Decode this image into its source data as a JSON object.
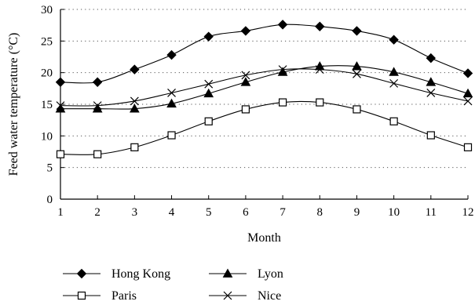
{
  "chart_data": {
    "type": "line",
    "x": [
      1,
      2,
      3,
      4,
      5,
      6,
      7,
      8,
      9,
      10,
      11,
      12
    ],
    "series": [
      {
        "name": "Hong Kong",
        "marker": "diamond-filled",
        "values": [
          18.5,
          18.5,
          20.5,
          22.8,
          25.7,
          26.6,
          27.6,
          27.3,
          26.6,
          25.2,
          22.3,
          19.9
        ]
      },
      {
        "name": "Lyon",
        "marker": "triangle-filled",
        "values": [
          14.3,
          14.3,
          14.3,
          15.1,
          16.7,
          18.5,
          20.1,
          21.0,
          21.0,
          20.1,
          18.5,
          16.7
        ]
      },
      {
        "name": "Paris",
        "marker": "square-open",
        "values": [
          7.1,
          7.1,
          8.2,
          10.1,
          12.3,
          14.2,
          15.3,
          15.3,
          14.2,
          12.3,
          10.1,
          8.2
        ]
      },
      {
        "name": "Nice",
        "marker": "x",
        "values": [
          14.8,
          14.8,
          15.5,
          16.8,
          18.2,
          19.6,
          20.5,
          20.5,
          19.8,
          18.3,
          16.8,
          15.5
        ]
      }
    ],
    "xlabel": "Month",
    "ylabel": "Feed water temperature (°C)",
    "xlim": [
      1,
      12
    ],
    "ylim": [
      0,
      30
    ],
    "xticks": [
      1,
      2,
      3,
      4,
      5,
      6,
      7,
      8,
      9,
      10,
      11,
      12
    ],
    "yticks": [
      0,
      5,
      10,
      15,
      20,
      25,
      30
    ],
    "grid": "horizontal-dotted",
    "legend_position": "bottom",
    "legend_order": [
      "Hong Kong",
      "Lyon",
      "Paris",
      "Nice"
    ],
    "line_color": "#000000",
    "smooth": true
  }
}
